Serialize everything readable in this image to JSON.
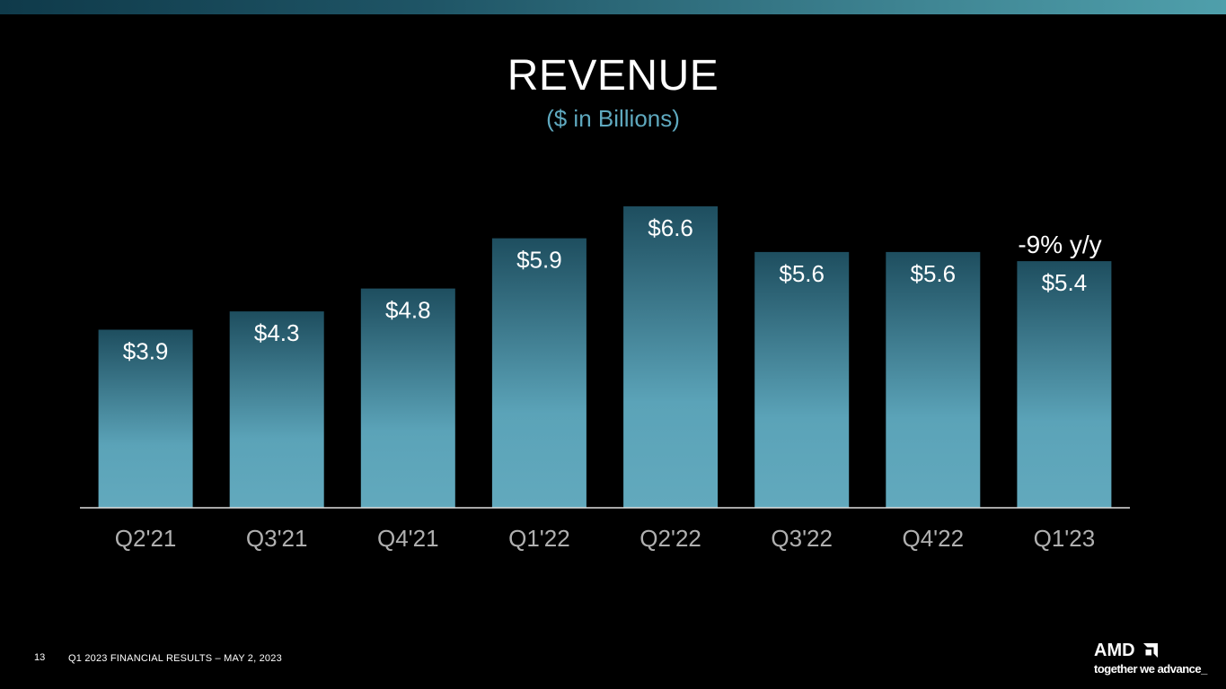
{
  "header": {
    "title": "REVENUE",
    "subtitle": "($ in Billions)"
  },
  "annotation": {
    "text": "-9% y/y"
  },
  "footer": {
    "page_number": "13",
    "text": "Q1 2023 FINANCIAL RESULTS – MAY 2, 2023"
  },
  "logo": {
    "wordmark": "AMD",
    "tagline": "together we advance_"
  },
  "colors": {
    "bar_top": "#1e4e5f",
    "bar_bottom": "#62a9bd",
    "axis": "#e0e0e0",
    "tick_label": "#b0b0b0",
    "subtitle": "#5fa9bf"
  },
  "chart_data": {
    "type": "bar",
    "title": "REVENUE",
    "subtitle": "($ in Billions)",
    "categories": [
      "Q2'21",
      "Q3'21",
      "Q4'21",
      "Q1'22",
      "Q2'22",
      "Q3'22",
      "Q4'22",
      "Q1'23"
    ],
    "values": [
      3.9,
      4.3,
      4.8,
      5.9,
      6.6,
      5.6,
      5.6,
      5.4
    ],
    "labels": [
      "$3.9",
      "$4.3",
      "$4.8",
      "$5.9",
      "$6.6",
      "$5.6",
      "$5.6",
      "$5.4"
    ],
    "xlabel": "",
    "ylabel": "",
    "ylim": [
      0,
      6.6
    ],
    "grid": false,
    "legend": "none",
    "annotations": [
      {
        "category": "Q1'23",
        "text": "-9% y/y"
      }
    ]
  }
}
